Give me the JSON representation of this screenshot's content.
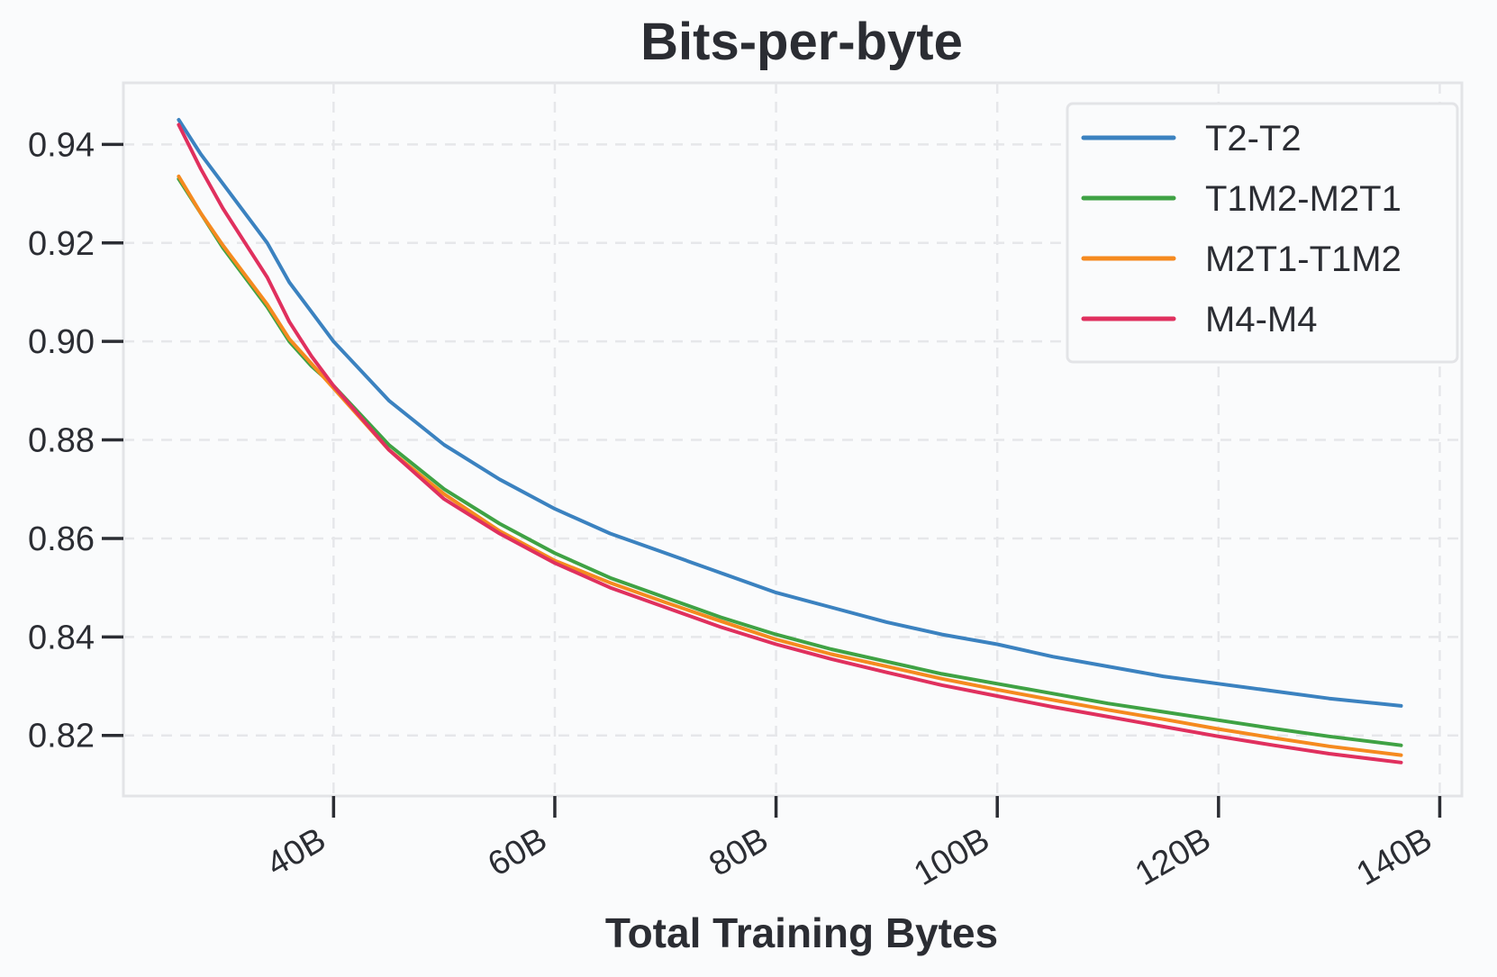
{
  "chart_data": {
    "type": "line",
    "title": "Bits-per-byte",
    "xlabel": "Total Training Bytes",
    "ylabel": "",
    "xlim": [
      21,
      142
    ],
    "ylim": [
      0.8077,
      0.9525
    ],
    "x_ticks": [
      40,
      60,
      80,
      100,
      120,
      140
    ],
    "x_tick_labels": [
      "40B",
      "60B",
      "80B",
      "100B",
      "120B",
      "140B"
    ],
    "y_ticks": [
      0.82,
      0.84,
      0.86,
      0.88,
      0.9,
      0.92,
      0.94
    ],
    "y_tick_labels": [
      "0.82",
      "0.84",
      "0.86",
      "0.88",
      "0.90",
      "0.92",
      "0.94"
    ],
    "grid": true,
    "legend_position": "top-right",
    "x": [
      26,
      28,
      30,
      32,
      34,
      36,
      38,
      40,
      45,
      50,
      55,
      60,
      65,
      70,
      75,
      80,
      85,
      90,
      95,
      100,
      105,
      110,
      115,
      120,
      125,
      130,
      136.5
    ],
    "series": [
      {
        "name": "T2-T2",
        "color": "#3b82c0",
        "values": [
          0.945,
          0.938,
          0.932,
          0.926,
          0.92,
          0.912,
          0.906,
          0.9,
          0.888,
          0.879,
          0.872,
          0.866,
          0.861,
          0.857,
          0.853,
          0.849,
          0.846,
          0.843,
          0.8405,
          0.8385,
          0.836,
          0.834,
          0.832,
          0.8305,
          0.829,
          0.8275,
          0.826
        ]
      },
      {
        "name": "T1M2-M2T1",
        "color": "#3fa244",
        "values": [
          0.933,
          0.926,
          0.919,
          0.913,
          0.907,
          0.9,
          0.895,
          0.891,
          0.879,
          0.87,
          0.863,
          0.857,
          0.852,
          0.848,
          0.844,
          0.8405,
          0.8375,
          0.835,
          0.8325,
          0.8305,
          0.8285,
          0.8265,
          0.8248,
          0.8231,
          0.8214,
          0.8198,
          0.818
        ]
      },
      {
        "name": "M2T1-T1M2",
        "color": "#f58a1f",
        "values": [
          0.9335,
          0.926,
          0.9195,
          0.9135,
          0.9075,
          0.9005,
          0.8955,
          0.8905,
          0.878,
          0.869,
          0.8615,
          0.8555,
          0.851,
          0.847,
          0.8432,
          0.8395,
          0.8365,
          0.834,
          0.8315,
          0.8293,
          0.8272,
          0.8252,
          0.8233,
          0.8213,
          0.8195,
          0.8178,
          0.816
        ]
      },
      {
        "name": "M4-M4",
        "color": "#e0305e",
        "values": [
          0.944,
          0.935,
          0.927,
          0.92,
          0.913,
          0.904,
          0.897,
          0.891,
          0.878,
          0.868,
          0.861,
          0.855,
          0.85,
          0.846,
          0.842,
          0.8385,
          0.8355,
          0.8328,
          0.8302,
          0.828,
          0.8258,
          0.8238,
          0.8218,
          0.8198,
          0.818,
          0.8163,
          0.8145
        ]
      }
    ]
  }
}
